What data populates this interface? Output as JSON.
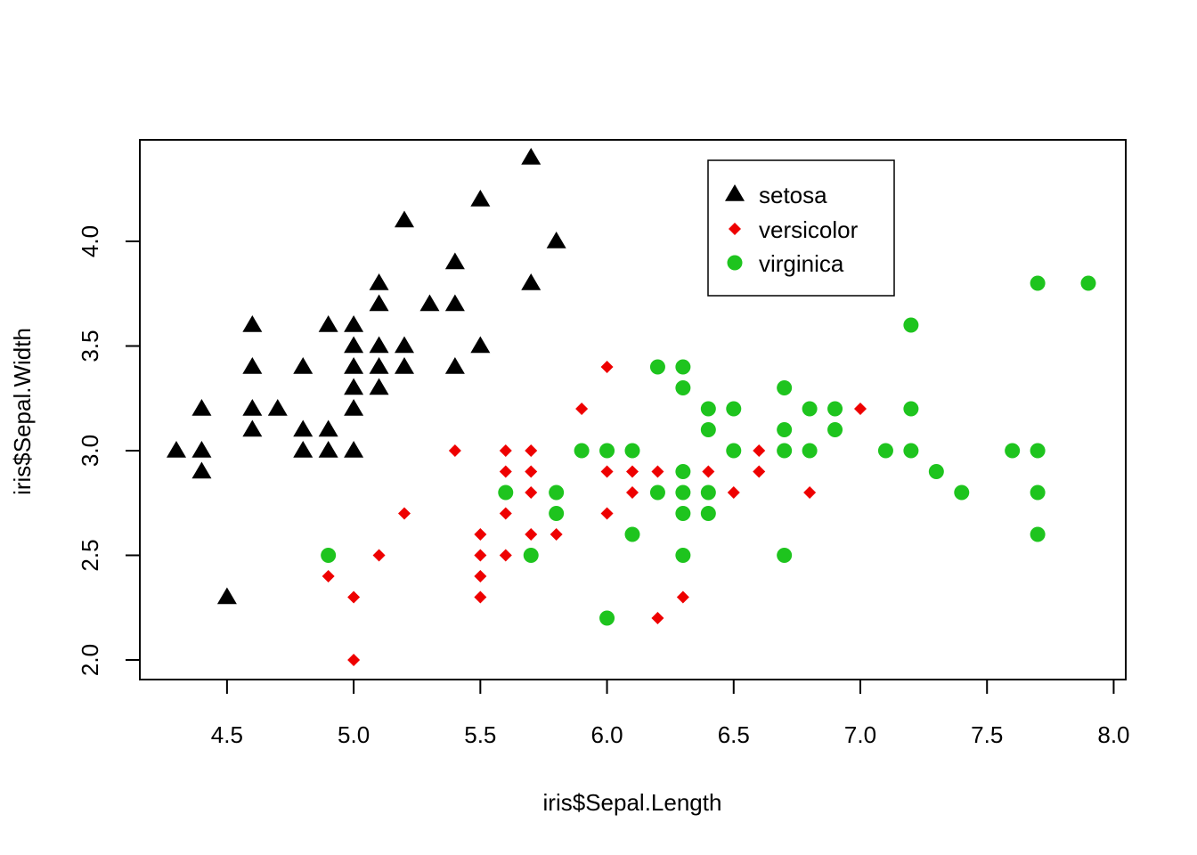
{
  "chart_data": {
    "type": "scatter",
    "xlabel": "iris$Sepal.Length",
    "ylabel": "iris$Sepal.Width",
    "xlim": [
      4.3,
      7.9
    ],
    "ylim": [
      2.0,
      4.4
    ],
    "x_ticks": [
      "4.5",
      "5.0",
      "5.5",
      "6.0",
      "6.5",
      "7.0",
      "7.5",
      "8.0"
    ],
    "y_ticks": [
      "2.0",
      "2.5",
      "3.0",
      "3.5",
      "4.0"
    ],
    "legend_position": "top-right",
    "series": [
      {
        "name": "setosa",
        "color": "#000000",
        "marker": "triangle",
        "points": [
          [
            4.3,
            3.0
          ],
          [
            4.4,
            2.9
          ],
          [
            4.4,
            3.0
          ],
          [
            4.4,
            3.2
          ],
          [
            4.5,
            2.3
          ],
          [
            4.6,
            3.1
          ],
          [
            4.6,
            3.2
          ],
          [
            4.6,
            3.4
          ],
          [
            4.6,
            3.6
          ],
          [
            4.7,
            3.2
          ],
          [
            4.8,
            3.0
          ],
          [
            4.8,
            3.1
          ],
          [
            4.8,
            3.4
          ],
          [
            4.9,
            3.0
          ],
          [
            4.9,
            3.1
          ],
          [
            4.9,
            3.6
          ],
          [
            5.0,
            3.0
          ],
          [
            5.0,
            3.2
          ],
          [
            5.0,
            3.3
          ],
          [
            5.0,
            3.4
          ],
          [
            5.0,
            3.5
          ],
          [
            5.0,
            3.6
          ],
          [
            5.1,
            3.3
          ],
          [
            5.1,
            3.4
          ],
          [
            5.1,
            3.5
          ],
          [
            5.1,
            3.7
          ],
          [
            5.1,
            3.8
          ],
          [
            5.2,
            3.4
          ],
          [
            5.2,
            3.5
          ],
          [
            5.2,
            4.1
          ],
          [
            5.3,
            3.7
          ],
          [
            5.4,
            3.4
          ],
          [
            5.4,
            3.7
          ],
          [
            5.4,
            3.9
          ],
          [
            5.5,
            3.5
          ],
          [
            5.5,
            4.2
          ],
          [
            5.7,
            3.8
          ],
          [
            5.7,
            4.4
          ],
          [
            5.8,
            4.0
          ]
        ]
      },
      {
        "name": "versicolor",
        "color": "#ee0000",
        "marker": "diamond",
        "points": [
          [
            4.9,
            2.4
          ],
          [
            5.0,
            2.0
          ],
          [
            5.0,
            2.3
          ],
          [
            5.1,
            2.5
          ],
          [
            5.2,
            2.7
          ],
          [
            5.4,
            3.0
          ],
          [
            5.5,
            2.3
          ],
          [
            5.5,
            2.4
          ],
          [
            5.5,
            2.5
          ],
          [
            5.5,
            2.6
          ],
          [
            5.6,
            2.5
          ],
          [
            5.6,
            2.7
          ],
          [
            5.6,
            2.9
          ],
          [
            5.6,
            3.0
          ],
          [
            5.7,
            2.6
          ],
          [
            5.7,
            2.8
          ],
          [
            5.7,
            2.9
          ],
          [
            5.7,
            3.0
          ],
          [
            5.8,
            2.6
          ],
          [
            5.8,
            2.7
          ],
          [
            5.9,
            3.0
          ],
          [
            5.9,
            3.2
          ],
          [
            6.0,
            2.2
          ],
          [
            6.0,
            2.7
          ],
          [
            6.0,
            2.9
          ],
          [
            6.0,
            3.4
          ],
          [
            6.1,
            2.8
          ],
          [
            6.1,
            2.9
          ],
          [
            6.1,
            3.0
          ],
          [
            6.2,
            2.2
          ],
          [
            6.2,
            2.9
          ],
          [
            6.3,
            2.3
          ],
          [
            6.3,
            2.5
          ],
          [
            6.3,
            3.3
          ],
          [
            6.4,
            2.9
          ],
          [
            6.4,
            3.2
          ],
          [
            6.5,
            2.8
          ],
          [
            6.6,
            2.9
          ],
          [
            6.6,
            3.0
          ],
          [
            6.7,
            3.0
          ],
          [
            6.7,
            3.1
          ],
          [
            6.8,
            2.8
          ],
          [
            6.9,
            3.1
          ],
          [
            7.0,
            3.2
          ]
        ]
      },
      {
        "name": "virginica",
        "color": "#1ec41e",
        "marker": "circle",
        "points": [
          [
            4.9,
            2.5
          ],
          [
            5.6,
            2.8
          ],
          [
            5.7,
            2.5
          ],
          [
            5.8,
            2.7
          ],
          [
            5.8,
            2.8
          ],
          [
            5.9,
            3.0
          ],
          [
            6.0,
            2.2
          ],
          [
            6.0,
            3.0
          ],
          [
            6.1,
            2.6
          ],
          [
            6.1,
            3.0
          ],
          [
            6.2,
            2.8
          ],
          [
            6.2,
            3.4
          ],
          [
            6.3,
            2.5
          ],
          [
            6.3,
            2.7
          ],
          [
            6.3,
            2.8
          ],
          [
            6.3,
            2.9
          ],
          [
            6.3,
            3.3
          ],
          [
            6.3,
            3.4
          ],
          [
            6.4,
            2.7
          ],
          [
            6.4,
            2.8
          ],
          [
            6.4,
            3.1
          ],
          [
            6.4,
            3.2
          ],
          [
            6.5,
            3.0
          ],
          [
            6.5,
            3.2
          ],
          [
            6.7,
            2.5
          ],
          [
            6.7,
            3.0
          ],
          [
            6.7,
            3.1
          ],
          [
            6.7,
            3.3
          ],
          [
            6.8,
            3.0
          ],
          [
            6.8,
            3.2
          ],
          [
            6.9,
            3.1
          ],
          [
            6.9,
            3.2
          ],
          [
            7.1,
            3.0
          ],
          [
            7.2,
            3.0
          ],
          [
            7.2,
            3.2
          ],
          [
            7.2,
            3.6
          ],
          [
            7.3,
            2.9
          ],
          [
            7.4,
            2.8
          ],
          [
            7.6,
            3.0
          ],
          [
            7.7,
            2.6
          ],
          [
            7.7,
            2.8
          ],
          [
            7.7,
            3.0
          ],
          [
            7.7,
            3.8
          ],
          [
            7.9,
            3.8
          ]
        ]
      }
    ]
  }
}
